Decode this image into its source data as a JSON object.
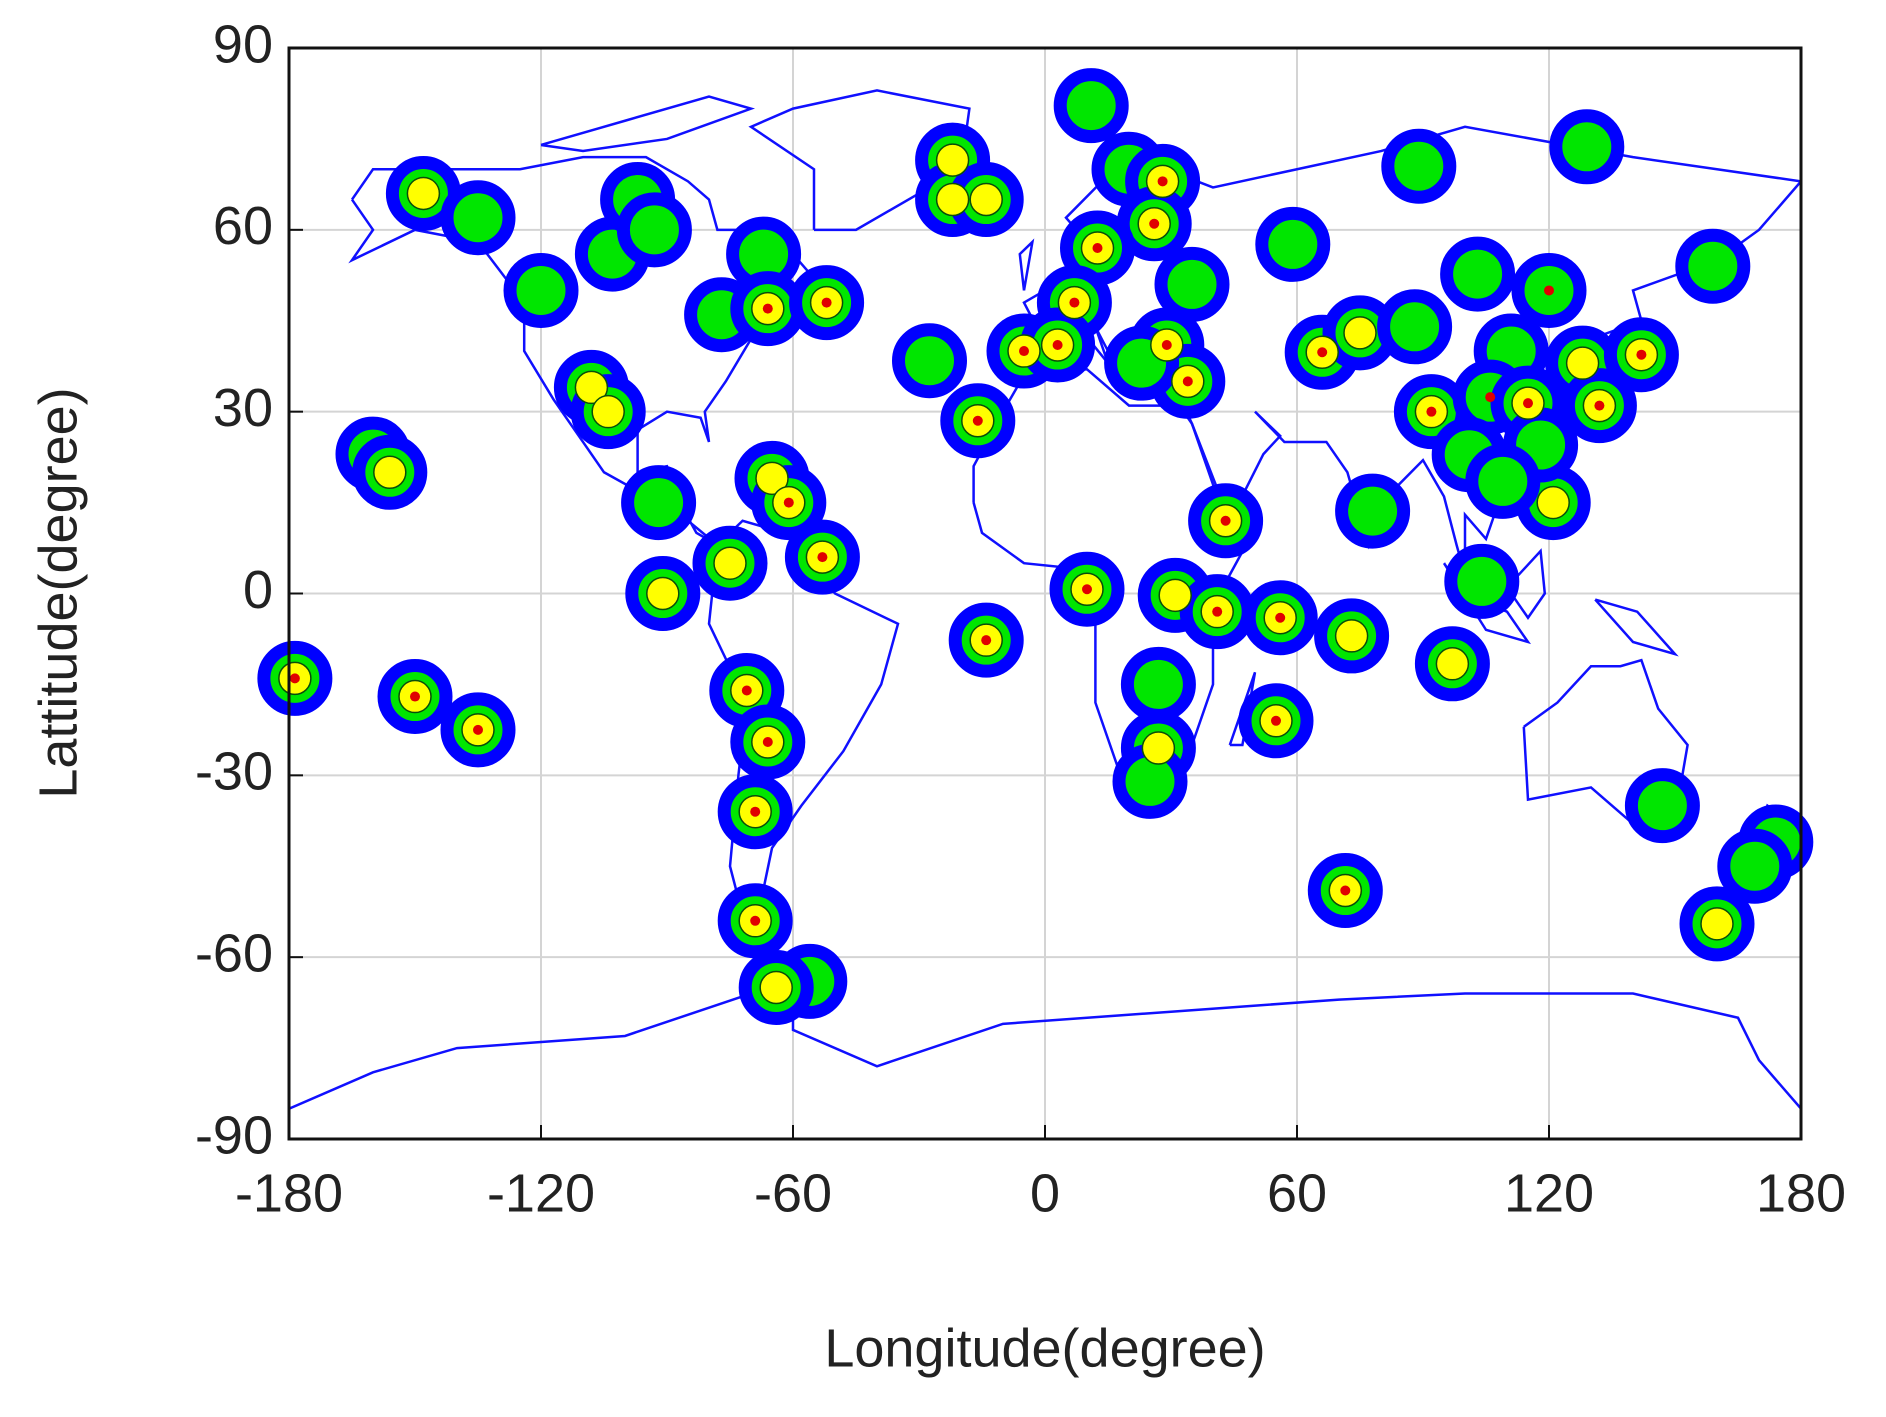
{
  "chart_data": {
    "type": "scatter",
    "xlabel": "Longitude(degree)",
    "ylabel": "Lattitude(degree)",
    "xlim": [
      -180,
      180
    ],
    "ylim": [
      -90,
      90
    ],
    "xticks": [
      -180,
      -120,
      -60,
      0,
      60,
      120,
      180
    ],
    "yticks": [
      -90,
      -60,
      -30,
      0,
      30,
      60,
      90
    ],
    "grid": true,
    "series": [
      {
        "color": "#00e600",
        "edgecolor": "#0000ff",
        "x": [
          -148,
          -135,
          -120,
          -103,
          -97,
          -93,
          -108,
          -104,
          -160,
          -156,
          -92,
          -91,
          -75,
          -77,
          -67,
          -66,
          -52,
          -65,
          -61,
          -53,
          -71,
          -66,
          -69,
          -69,
          -56,
          -64,
          -178.6,
          -150,
          -135,
          -22,
          -22,
          -14,
          -27.5,
          -16,
          -14,
          11,
          20,
          28,
          26,
          12.5,
          7,
          -5,
          3,
          29,
          34,
          35,
          23,
          10,
          31,
          41,
          43,
          56,
          73,
          27,
          27,
          25,
          55,
          59,
          89,
          129,
          159,
          66,
          75,
          88,
          92,
          103,
          120,
          111,
          106,
          115,
          128,
          132,
          142,
          101,
          78,
          121,
          104,
          97,
          147,
          174,
          169,
          160,
          71.5,
          118,
          109
        ],
        "y": [
          66,
          62,
          50,
          56,
          65,
          60,
          34,
          30,
          23,
          20,
          15,
          0,
          5,
          46,
          56,
          47,
          48,
          19,
          15,
          6,
          -16,
          -24.5,
          -36,
          -54,
          -64,
          -65,
          -14,
          -17,
          -22.5,
          71.5,
          65,
          65,
          38.4,
          28.5,
          -7.7,
          80.5,
          70,
          68,
          61,
          57,
          48,
          40,
          41,
          41,
          35,
          51,
          38,
          0.7,
          -0.3,
          -3,
          12,
          -4,
          -7,
          -15,
          -25.5,
          -31,
          -21,
          57.6,
          70.5,
          73.7,
          54,
          39.8,
          43,
          44,
          30,
          52.7,
          50,
          40,
          32.4,
          31.4,
          38,
          31,
          39.4,
          22.9,
          13.6,
          15,
          2,
          -11.6,
          -35,
          -41,
          -45,
          -54.5,
          -49,
          24.5,
          18.5
        ]
      },
      {
        "color": "#ffff00",
        "x": [
          -148,
          -108,
          -104,
          -156,
          -91,
          -75,
          -66,
          -52,
          -65,
          -61,
          -53,
          -71,
          -66,
          -69,
          -69,
          -64,
          -178.6,
          -150,
          -135,
          -22,
          -22,
          -14,
          -16,
          -14,
          28,
          26,
          12.5,
          7,
          -5,
          3,
          29,
          34,
          10,
          31,
          41,
          43,
          56,
          73,
          27,
          55,
          66,
          75,
          92,
          115,
          128,
          132,
          142,
          121,
          97,
          160,
          71.5
        ],
        "y": [
          66,
          34,
          30,
          20,
          0,
          5,
          47,
          48,
          19,
          15,
          6,
          -16,
          -24.5,
          -36,
          -54,
          -65,
          -14,
          -17,
          -22.5,
          71.5,
          65,
          65,
          28.5,
          -7.7,
          68,
          61,
          57,
          48,
          40,
          41,
          41,
          35,
          0.7,
          -0.3,
          -3,
          12,
          -4,
          -7,
          -25.5,
          -21,
          39.8,
          43,
          30,
          31.4,
          38,
          31,
          39.4,
          15,
          -11.6,
          -54.5,
          -49
        ]
      },
      {
        "color": "#e00000",
        "x": [
          -66,
          -52,
          -61,
          -53,
          -71,
          -66,
          -69,
          -69,
          -178.6,
          -150,
          -135,
          -16,
          -14,
          28,
          26,
          12.5,
          7,
          -5,
          3,
          29,
          34,
          10,
          41,
          43,
          56,
          55,
          66,
          92,
          120,
          106,
          115,
          132,
          142,
          71.5
        ],
        "y": [
          47,
          48,
          15,
          6,
          -16,
          -24.5,
          -36,
          -54,
          -14,
          -17,
          -22.5,
          28.5,
          -7.7,
          68,
          61,
          57,
          48,
          40,
          41,
          41,
          35,
          0.7,
          -3,
          12,
          -4,
          -21,
          39.8,
          30,
          50,
          32.4,
          31.4,
          31,
          39.4,
          -49
        ]
      }
    ]
  }
}
